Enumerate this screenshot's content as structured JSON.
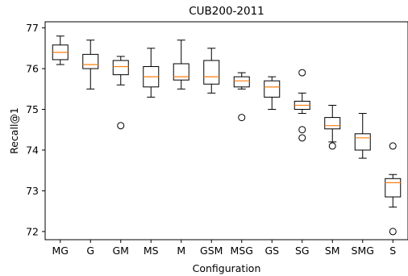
{
  "chart_data": {
    "type": "box",
    "title": "CUB200-2011",
    "xlabel": "Configuration",
    "ylabel": "Recall@1",
    "ylim": [
      71.8,
      77.15
    ],
    "yticks": [
      72,
      73,
      74,
      75,
      76,
      77
    ],
    "grid": false,
    "colors": {
      "box": "#000000",
      "median": "#ff7f0e"
    },
    "categories": [
      "MG",
      "G",
      "GM",
      "MS",
      "M",
      "GSM",
      "MSG",
      "GS",
      "SG",
      "SM",
      "SMG",
      "S"
    ],
    "boxes": [
      {
        "label": "MG",
        "whisker_low": 76.1,
        "q1": 76.22,
        "median": 76.4,
        "q3": 76.58,
        "whisker_high": 76.8,
        "outliers": []
      },
      {
        "label": "G",
        "whisker_low": 75.5,
        "q1": 76.0,
        "median": 76.1,
        "q3": 76.35,
        "whisker_high": 76.7,
        "outliers": []
      },
      {
        "label": "GM",
        "whisker_low": 75.6,
        "q1": 75.85,
        "median": 76.05,
        "q3": 76.2,
        "whisker_high": 76.3,
        "outliers": [
          74.6
        ]
      },
      {
        "label": "MS",
        "whisker_low": 75.3,
        "q1": 75.55,
        "median": 75.8,
        "q3": 76.05,
        "whisker_high": 76.5,
        "outliers": []
      },
      {
        "label": "M",
        "whisker_low": 75.5,
        "q1": 75.72,
        "median": 75.8,
        "q3": 76.12,
        "whisker_high": 76.7,
        "outliers": []
      },
      {
        "label": "GSM",
        "whisker_low": 75.4,
        "q1": 75.62,
        "median": 75.8,
        "q3": 76.2,
        "whisker_high": 76.5,
        "outliers": []
      },
      {
        "label": "MSG",
        "whisker_low": 75.5,
        "q1": 75.55,
        "median": 75.7,
        "q3": 75.8,
        "whisker_high": 75.9,
        "outliers": [
          74.8
        ]
      },
      {
        "label": "GS",
        "whisker_low": 75.0,
        "q1": 75.3,
        "median": 75.55,
        "q3": 75.7,
        "whisker_high": 75.8,
        "outliers": []
      },
      {
        "label": "SG",
        "whisker_low": 74.9,
        "q1": 75.0,
        "median": 75.1,
        "q3": 75.2,
        "whisker_high": 75.4,
        "outliers": [
          75.9,
          74.5,
          74.3
        ]
      },
      {
        "label": "SM",
        "whisker_low": 74.2,
        "q1": 74.52,
        "median": 74.6,
        "q3": 74.8,
        "whisker_high": 75.1,
        "outliers": [
          74.1
        ]
      },
      {
        "label": "SMG",
        "whisker_low": 73.8,
        "q1": 74.0,
        "median": 74.3,
        "q3": 74.4,
        "whisker_high": 74.9,
        "outliers": []
      },
      {
        "label": "S",
        "whisker_low": 72.6,
        "q1": 72.85,
        "median": 73.2,
        "q3": 73.3,
        "whisker_high": 73.4,
        "outliers": [
          74.1,
          72.0
        ]
      }
    ]
  }
}
